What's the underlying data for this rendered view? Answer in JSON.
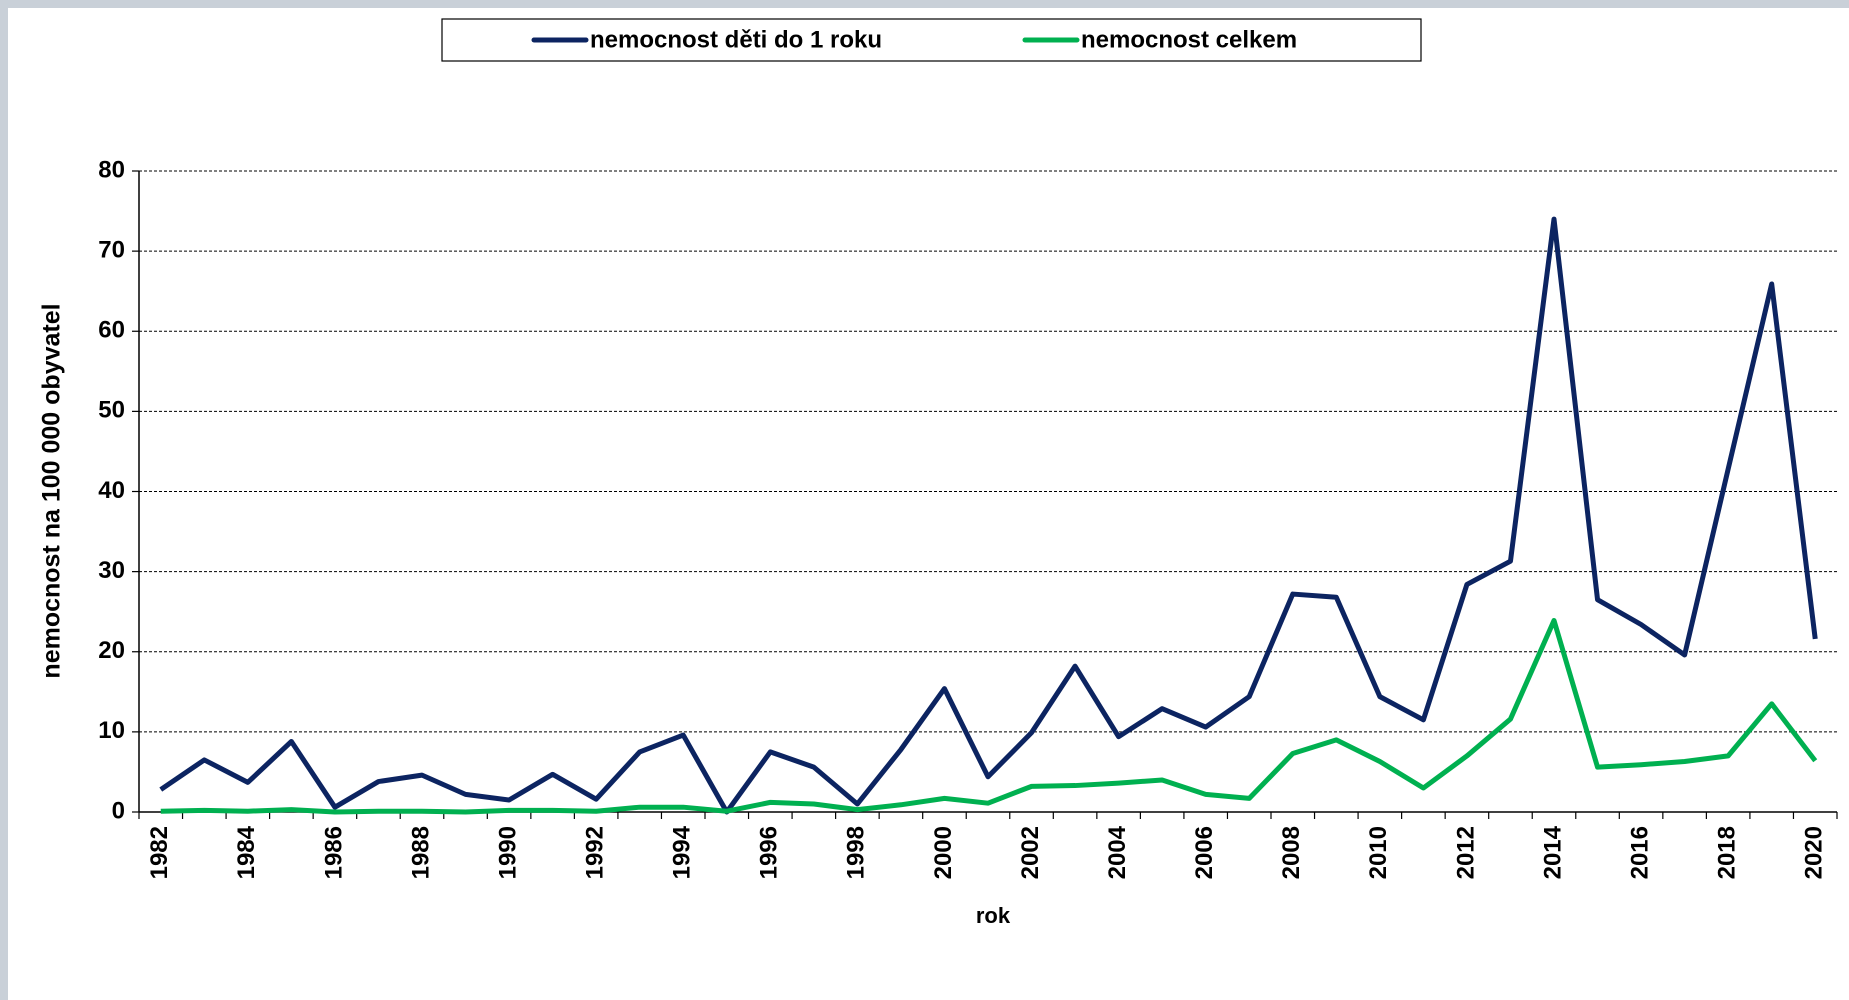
{
  "chart_data": {
    "type": "line",
    "y_label": "nemocnost na 100 000 obyvatel",
    "x_label": "rok",
    "categories": [
      "1982",
      null,
      "1984",
      null,
      "1986",
      null,
      "1988",
      null,
      "1990",
      null,
      "1992",
      null,
      "1994",
      null,
      "1996",
      null,
      "1998",
      null,
      "2000",
      null,
      "2002",
      null,
      "2004",
      null,
      "2006",
      null,
      "2008",
      null,
      "2010",
      null,
      "2012",
      null,
      "2014",
      null,
      "2016",
      null,
      "2018",
      null,
      "2020"
    ],
    "series": [
      {
        "name": "nemocnost děti do 1 roku",
        "color": "#0c2461",
        "values": [
          2.8,
          6.5,
          3.7,
          8.8,
          0.6,
          3.8,
          4.6,
          2.2,
          1.5,
          4.7,
          1.6,
          7.5,
          9.6,
          0,
          7.5,
          5.6,
          1,
          7.8,
          15.4,
          4.4,
          9.9,
          18.2,
          9.4,
          12.9,
          10.6,
          14.4,
          27.2,
          26.8,
          14.4,
          11.5,
          28.4,
          31.3,
          74,
          26.5,
          23.4,
          19.6,
          42.8,
          65.9,
          21.6
        ]
      },
      {
        "name": "nemocnost celkem",
        "color": "#00b050",
        "values": [
          0.1,
          0.2,
          0.1,
          0.3,
          0,
          0.1,
          0.1,
          0,
          0.2,
          0.2,
          0.1,
          0.6,
          0.6,
          0.1,
          1.2,
          1,
          0.3,
          0.9,
          1.7,
          1.1,
          3.2,
          3.3,
          3.6,
          4,
          2.2,
          1.7,
          7.3,
          9,
          6.3,
          3,
          7,
          11.6,
          23.9,
          5.6,
          5.9,
          6.3,
          7,
          13.5,
          6.4
        ]
      }
    ],
    "ylim": [
      0,
      80
    ],
    "yticks": [
      0,
      10,
      20,
      30,
      40,
      50,
      60,
      70,
      80
    ],
    "grid": true,
    "legend": "top"
  }
}
